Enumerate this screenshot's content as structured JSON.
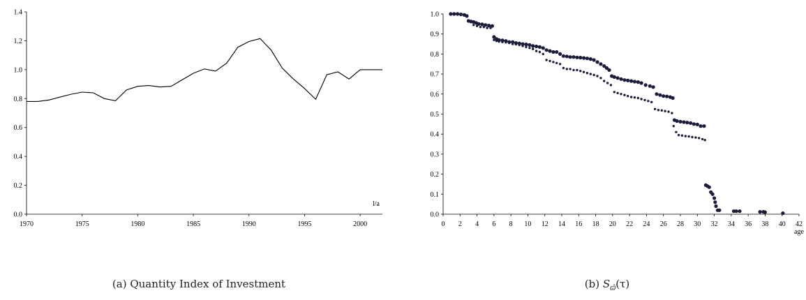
{
  "captions": {
    "a": "(a) Quantity Index of Investment",
    "b_prefix": "(b) ",
    "b_S": "S",
    "b_sub": "ϖ̂",
    "b_arg": "(τ)"
  },
  "chart_data": [
    {
      "type": "line",
      "title": "",
      "xlabel": "l/a",
      "ylabel": "",
      "xlim": [
        1970,
        2002
      ],
      "ylim": [
        0.0,
        1.4
      ],
      "x_ticks": [
        "1970",
        "1975",
        "1980",
        "1985",
        "1990",
        "1995",
        "2000"
      ],
      "y_ticks": [
        "0.0",
        "0.2",
        "0.4",
        "0.6",
        "0.8",
        "1.0",
        "1.2",
        "1.4"
      ],
      "grid": false,
      "series": [
        {
          "x": [
            1970,
            1971,
            1972,
            1973,
            1974,
            1975,
            1976,
            1977,
            1978,
            1979,
            1980,
            1981,
            1982,
            1983,
            1984,
            1985,
            1986,
            1987,
            1988,
            1989,
            1990,
            1991,
            1992,
            1993,
            1994,
            1995,
            1996,
            1997,
            1998,
            1999,
            2000,
            2001,
            2002
          ],
          "y": [
            0.78,
            0.78,
            0.79,
            0.81,
            0.83,
            0.845,
            0.84,
            0.8,
            0.785,
            0.86,
            0.885,
            0.89,
            0.88,
            0.885,
            0.93,
            0.975,
            1.005,
            0.99,
            1.045,
            1.155,
            1.195,
            1.215,
            1.135,
            1.01,
            0.935,
            0.87,
            0.795,
            0.965,
            0.985,
            0.935,
            1.0,
            1.0,
            1.0
          ]
        }
      ],
      "color": "#000000"
    },
    {
      "type": "scatter",
      "title": "",
      "xlabel": "age",
      "ylabel": "",
      "xlim": [
        0,
        42
      ],
      "ylim": [
        0.0,
        1.0
      ],
      "x_ticks": [
        "0",
        "2",
        "4",
        "6",
        "8",
        "10",
        "12",
        "14",
        "16",
        "18",
        "20",
        "22",
        "24",
        "26",
        "28",
        "30",
        "32",
        "34",
        "36",
        "38",
        "40",
        "42"
      ],
      "y_ticks": [
        "0.0",
        "0.1",
        "0.2",
        "0.3",
        "0.4",
        "0.5",
        "0.6",
        "0.7",
        "0.8",
        "0.9",
        "1.0"
      ],
      "grid": false,
      "series": [
        {
          "x": [
            0.9,
            1.3,
            1.7,
            2.1,
            2.5,
            2.8,
            3.0,
            3.3,
            3.6,
            3.9,
            4.2,
            4.6,
            5.0,
            5.4,
            5.8,
            6.0,
            6.3,
            6.6,
            7.0,
            7.4,
            7.8,
            8.2,
            8.6,
            9.0,
            9.4,
            9.8,
            10.2,
            10.6,
            11.0,
            11.4,
            11.8,
            12.2,
            12.6,
            13.0,
            13.4,
            13.8,
            14.2,
            14.6,
            15.0,
            15.4,
            15.8,
            16.2,
            16.6,
            17.0,
            17.4,
            17.8,
            18.2,
            18.6,
            19.0,
            19.3,
            19.6,
            19.9,
            20.2,
            20.6,
            21.0,
            21.4,
            21.8,
            22.2,
            22.6,
            23.0,
            23.4,
            23.9,
            24.4,
            24.8,
            25.2,
            25.6,
            26.0,
            26.4,
            26.8,
            27.1,
            27.3,
            27.6,
            28.0,
            28.4,
            28.8,
            29.2,
            29.6,
            30.0,
            30.4,
            30.8,
            31.0,
            31.2,
            31.4,
            31.6,
            31.8,
            32.0,
            32.1,
            32.2,
            32.4,
            32.6,
            34.3,
            34.6,
            35.0,
            37.4,
            37.8,
            38.0,
            40.1
          ],
          "y": [
            1.0,
            1.0,
            1.0,
            0.998,
            0.995,
            0.99,
            0.965,
            0.962,
            0.96,
            0.955,
            0.95,
            0.948,
            0.945,
            0.942,
            0.94,
            0.885,
            0.875,
            0.87,
            0.868,
            0.865,
            0.86,
            0.86,
            0.855,
            0.853,
            0.85,
            0.848,
            0.845,
            0.84,
            0.838,
            0.835,
            0.83,
            0.82,
            0.815,
            0.81,
            0.81,
            0.8,
            0.79,
            0.788,
            0.785,
            0.785,
            0.783,
            0.782,
            0.78,
            0.778,
            0.775,
            0.77,
            0.76,
            0.75,
            0.74,
            0.73,
            0.72,
            0.69,
            0.685,
            0.68,
            0.675,
            0.67,
            0.668,
            0.665,
            0.662,
            0.66,
            0.655,
            0.645,
            0.64,
            0.635,
            0.6,
            0.595,
            0.59,
            0.588,
            0.585,
            0.58,
            0.47,
            0.465,
            0.462,
            0.46,
            0.458,
            0.455,
            0.45,
            0.448,
            0.44,
            0.44,
            0.145,
            0.14,
            0.135,
            0.11,
            0.1,
            0.08,
            0.06,
            0.04,
            0.02,
            0.02,
            0.015,
            0.015,
            0.015,
            0.012,
            0.012,
            0.01,
            0.005
          ]
        },
        {
          "x": [
            3.6,
            4.0,
            4.4,
            4.8,
            5.2,
            5.6,
            6.0,
            6.3,
            6.6,
            7.0,
            7.4,
            7.8,
            8.2,
            8.6,
            9.0,
            9.4,
            9.8,
            10.2,
            10.6,
            11.0,
            11.4,
            11.8,
            12.2,
            12.6,
            13.0,
            13.4,
            13.8,
            14.2,
            14.6,
            15.0,
            15.4,
            15.8,
            16.2,
            16.6,
            17.0,
            17.4,
            17.8,
            18.2,
            18.6,
            19.0,
            19.4,
            19.8,
            20.2,
            20.6,
            21.0,
            21.4,
            21.8,
            22.2,
            22.6,
            23.0,
            23.4,
            23.8,
            24.2,
            24.6,
            25.0,
            25.4,
            25.8,
            26.2,
            26.6,
            27.0,
            27.2,
            27.5,
            27.8,
            28.2,
            28.6,
            29.0,
            29.4,
            29.8,
            30.2,
            30.6,
            30.9
          ],
          "y": [
            0.945,
            0.94,
            0.935,
            0.935,
            0.93,
            0.93,
            0.87,
            0.865,
            0.862,
            0.86,
            0.858,
            0.855,
            0.85,
            0.848,
            0.845,
            0.84,
            0.835,
            0.83,
            0.825,
            0.815,
            0.81,
            0.8,
            0.77,
            0.765,
            0.76,
            0.755,
            0.75,
            0.73,
            0.725,
            0.725,
            0.72,
            0.72,
            0.715,
            0.71,
            0.705,
            0.7,
            0.695,
            0.69,
            0.68,
            0.665,
            0.655,
            0.645,
            0.61,
            0.605,
            0.6,
            0.595,
            0.59,
            0.585,
            0.583,
            0.58,
            0.575,
            0.57,
            0.565,
            0.56,
            0.525,
            0.52,
            0.518,
            0.515,
            0.512,
            0.505,
            0.44,
            0.41,
            0.395,
            0.393,
            0.39,
            0.388,
            0.385,
            0.383,
            0.38,
            0.375,
            0.37
          ]
        }
      ],
      "color": "#1b1b3a"
    }
  ]
}
